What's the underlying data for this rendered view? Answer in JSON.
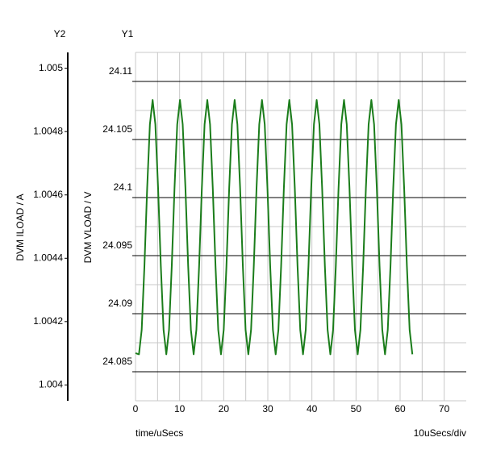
{
  "chart_data": {
    "type": "line",
    "y2_label_title": "Y2",
    "y_label_title": "Y1",
    "y2label": "DVM ILOAD / A",
    "ylabel": "DVM VLOAD / V",
    "xlabel": "time/uSecs",
    "x_scale_note": "10uSecs/div",
    "x": [
      0,
      0.78,
      1.4,
      2.02,
      2.64,
      3.26,
      3.88,
      4.5,
      5.12,
      5.74,
      6.36,
      6.98,
      7.6,
      8.22,
      8.84,
      9.46,
      10.08,
      10.7,
      11.32,
      11.94,
      12.56,
      13.18,
      13.8,
      14.42,
      15.04,
      15.66,
      16.28,
      16.9,
      17.52,
      18.14,
      18.76,
      19.38,
      20,
      20.62,
      21.24,
      21.86,
      22.48,
      23.1,
      23.72,
      24.34,
      24.96,
      25.58,
      26.2,
      26.82,
      27.44,
      28.06,
      28.68,
      29.3,
      29.92,
      30.54,
      31.16,
      31.78,
      32.4,
      33.02,
      33.64,
      34.26,
      34.88,
      35.5,
      36.12,
      36.74,
      37.36,
      37.98,
      38.6,
      39.22,
      39.84,
      40.46,
      41.08,
      41.7,
      42.32,
      42.94,
      43.56,
      44.18,
      44.8,
      45.42,
      46.04,
      46.66,
      47.28,
      47.9,
      48.52,
      49.14,
      49.76,
      50.38,
      51,
      51.62,
      52.24,
      52.86,
      53.48,
      54.1,
      54.72,
      55.34,
      55.96,
      56.58,
      57.2,
      57.82,
      58.44,
      59.06,
      59.68,
      60.3,
      60.92,
      61.54,
      62.16,
      62.78
    ],
    "values": [
      24.0866,
      24.0865,
      24.0886,
      24.0941,
      24.1008,
      24.1063,
      24.1084,
      24.1063,
      24.1008,
      24.0941,
      24.0886,
      24.0865,
      24.0886,
      24.0941,
      24.1008,
      24.1063,
      24.1084,
      24.1063,
      24.1008,
      24.0941,
      24.0886,
      24.0865,
      24.0886,
      24.0941,
      24.1008,
      24.1063,
      24.1084,
      24.1063,
      24.1008,
      24.0941,
      24.0886,
      24.0865,
      24.0886,
      24.0941,
      24.1008,
      24.1063,
      24.1084,
      24.1063,
      24.1008,
      24.0941,
      24.0886,
      24.0865,
      24.0886,
      24.0941,
      24.1008,
      24.1063,
      24.1084,
      24.1063,
      24.1008,
      24.0941,
      24.0886,
      24.0865,
      24.0886,
      24.0941,
      24.1008,
      24.1063,
      24.1084,
      24.1063,
      24.1008,
      24.0941,
      24.0886,
      24.0865,
      24.0886,
      24.0941,
      24.1008,
      24.1063,
      24.1084,
      24.1063,
      24.1008,
      24.0941,
      24.0886,
      24.0865,
      24.0886,
      24.0941,
      24.1008,
      24.1063,
      24.1084,
      24.1063,
      24.1008,
      24.0941,
      24.0886,
      24.0865,
      24.0886,
      24.0941,
      24.1008,
      24.1063,
      24.1084,
      24.1063,
      24.1008,
      24.0941,
      24.0886,
      24.0865,
      24.0886,
      24.0941,
      24.1008,
      24.1063,
      24.1084,
      24.1063,
      24.1008,
      24.0941,
      24.0886,
      24.0865
    ],
    "color": "#1b7d1b",
    "xlim": [
      0,
      75
    ],
    "xticks": [
      0,
      10,
      20,
      30,
      40,
      50,
      60,
      70
    ],
    "ylim": [
      24.0825,
      24.1125
    ],
    "yticks": [
      24.085,
      24.09,
      24.095,
      24.1,
      24.105,
      24.11
    ],
    "y2lim": [
      1.00395,
      1.00505
    ],
    "y2ticks": [
      1.004,
      1.0042,
      1.0044,
      1.0046,
      1.0048,
      1.005
    ],
    "grid": true
  }
}
